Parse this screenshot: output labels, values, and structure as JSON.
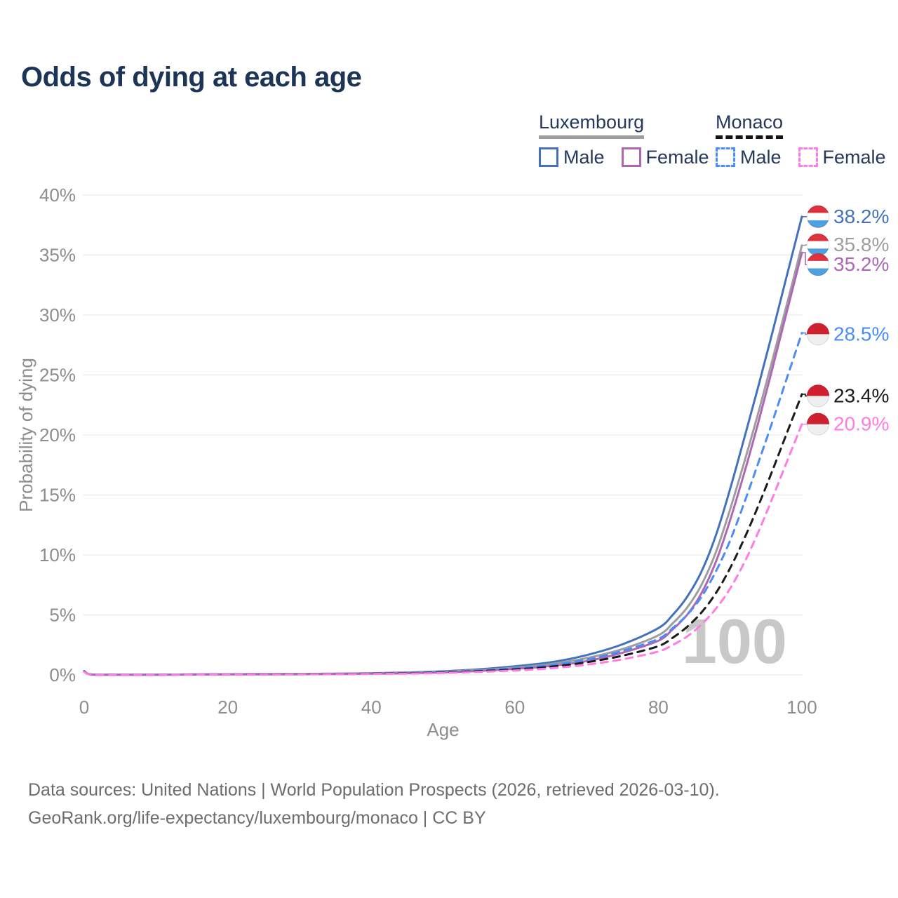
{
  "title": "Odds of dying at each age",
  "legend": {
    "luxembourg": {
      "label": "Luxembourg",
      "male": "Male",
      "female": "Female"
    },
    "monaco": {
      "label": "Monaco",
      "male": "Male",
      "female": "Female"
    }
  },
  "footer": {
    "line1": "Data sources: United Nations | World Population Prospects (2026, retrieved 2026-03-10).",
    "line2": "GeoRank.org/life-expectancy/luxembourg/monaco | CC BY"
  },
  "colors": {
    "title_navy": "#1c3557",
    "legend_text": "#24395b",
    "axis_text": "#8d8d8d",
    "gridline": "#ebebeb",
    "watermark": "#c8c8c8",
    "lux_underline": "#9e9e9e",
    "mon_underline": "#141414",
    "footer_text": "#6d6d6d"
  },
  "flags": {
    "luxembourg": [
      "#e0313f",
      "#ffffff",
      "#4fa0e0"
    ],
    "monaco": [
      "#d01f2f",
      "#efefef"
    ]
  },
  "chart_data": {
    "type": "line",
    "title": "Odds of dying at each age",
    "xlabel": "Age",
    "ylabel": "Probability of dying",
    "xlim": [
      0,
      100
    ],
    "ylim": [
      0,
      40
    ],
    "x_ticks": [
      0,
      20,
      40,
      60,
      80,
      100
    ],
    "y_ticks": [
      {
        "value": 0,
        "label": "0%"
      },
      {
        "value": 5,
        "label": "5%"
      },
      {
        "value": 10,
        "label": "10%"
      },
      {
        "value": 15,
        "label": "15%"
      },
      {
        "value": 20,
        "label": "20%"
      },
      {
        "value": 25,
        "label": "25%"
      },
      {
        "value": 30,
        "label": "30%"
      },
      {
        "value": 35,
        "label": "35%"
      },
      {
        "value": 40,
        "label": "40%"
      }
    ],
    "grid": "horizontal-only",
    "legend_position": "top-right",
    "watermark": "100",
    "series": [
      {
        "id": "lux_male",
        "name": "Luxembourg Male",
        "country": "luxembourg",
        "sex": "male",
        "color": "#4472ba",
        "dash": false,
        "end_label": "38.2%",
        "label_y_pct": 38.2,
        "points": [
          [
            0,
            0.32
          ],
          [
            1,
            0.04
          ],
          [
            5,
            0.02
          ],
          [
            10,
            0.02
          ],
          [
            15,
            0.04
          ],
          [
            20,
            0.06
          ],
          [
            25,
            0.07
          ],
          [
            30,
            0.08
          ],
          [
            35,
            0.1
          ],
          [
            40,
            0.14
          ],
          [
            45,
            0.2
          ],
          [
            50,
            0.3
          ],
          [
            55,
            0.47
          ],
          [
            60,
            0.72
          ],
          [
            65,
            1.05
          ],
          [
            70,
            1.65
          ],
          [
            75,
            2.55
          ],
          [
            80,
            3.9
          ],
          [
            82,
            5.0
          ],
          [
            84,
            6.5
          ],
          [
            86,
            8.6
          ],
          [
            88,
            11.6
          ],
          [
            90,
            15.5
          ],
          [
            92,
            19.8
          ],
          [
            94,
            24.2
          ],
          [
            96,
            28.8
          ],
          [
            98,
            33.5
          ],
          [
            100,
            38.2
          ]
        ]
      },
      {
        "id": "lux_both",
        "name": "Luxembourg Both sexes",
        "country": "luxembourg",
        "sex": "both",
        "color": "#9e9e9e",
        "dash": false,
        "end_label": "35.8%",
        "label_y_pct": 35.85,
        "points": [
          [
            0,
            0.29
          ],
          [
            1,
            0.035
          ],
          [
            5,
            0.018
          ],
          [
            10,
            0.018
          ],
          [
            15,
            0.035
          ],
          [
            20,
            0.05
          ],
          [
            25,
            0.06
          ],
          [
            30,
            0.07
          ],
          [
            35,
            0.09
          ],
          [
            40,
            0.12
          ],
          [
            45,
            0.17
          ],
          [
            50,
            0.26
          ],
          [
            55,
            0.4
          ],
          [
            60,
            0.6
          ],
          [
            65,
            0.9
          ],
          [
            70,
            1.4
          ],
          [
            75,
            2.15
          ],
          [
            80,
            3.3
          ],
          [
            82,
            4.3
          ],
          [
            84,
            5.6
          ],
          [
            86,
            7.5
          ],
          [
            88,
            10.2
          ],
          [
            90,
            13.8
          ],
          [
            92,
            17.8
          ],
          [
            94,
            22.0
          ],
          [
            96,
            26.5
          ],
          [
            98,
            31.1
          ],
          [
            100,
            35.8
          ]
        ]
      },
      {
        "id": "lux_female",
        "name": "Luxembourg Female",
        "country": "luxembourg",
        "sex": "female",
        "color": "#ad67b4",
        "dash": false,
        "end_label": "35.2%",
        "label_y_pct": 34.2,
        "points": [
          [
            0,
            0.27
          ],
          [
            1,
            0.03
          ],
          [
            5,
            0.015
          ],
          [
            10,
            0.015
          ],
          [
            15,
            0.03
          ],
          [
            20,
            0.04
          ],
          [
            25,
            0.045
          ],
          [
            30,
            0.055
          ],
          [
            35,
            0.07
          ],
          [
            40,
            0.1
          ],
          [
            45,
            0.14
          ],
          [
            50,
            0.21
          ],
          [
            55,
            0.33
          ],
          [
            60,
            0.5
          ],
          [
            65,
            0.75
          ],
          [
            70,
            1.15
          ],
          [
            75,
            1.85
          ],
          [
            80,
            2.85
          ],
          [
            82,
            3.8
          ],
          [
            84,
            5.0
          ],
          [
            86,
            6.8
          ],
          [
            88,
            9.4
          ],
          [
            90,
            12.9
          ],
          [
            92,
            16.9
          ],
          [
            94,
            21.2
          ],
          [
            96,
            25.8
          ],
          [
            98,
            30.5
          ],
          [
            100,
            35.2
          ]
        ]
      },
      {
        "id": "mon_male",
        "name": "Monaco Male",
        "country": "monaco",
        "sex": "male",
        "color": "#4b8cf7",
        "dash": true,
        "end_label": "28.5%",
        "label_y_pct": 28.4,
        "points": [
          [
            0,
            0.3
          ],
          [
            1,
            0.035
          ],
          [
            5,
            0.017
          ],
          [
            10,
            0.017
          ],
          [
            15,
            0.033
          ],
          [
            20,
            0.05
          ],
          [
            25,
            0.055
          ],
          [
            30,
            0.065
          ],
          [
            35,
            0.08
          ],
          [
            40,
            0.11
          ],
          [
            45,
            0.16
          ],
          [
            50,
            0.24
          ],
          [
            55,
            0.37
          ],
          [
            60,
            0.55
          ],
          [
            65,
            0.82
          ],
          [
            70,
            1.28
          ],
          [
            75,
            2.0
          ],
          [
            80,
            3.0
          ],
          [
            82,
            3.9
          ],
          [
            84,
            5.0
          ],
          [
            86,
            6.5
          ],
          [
            88,
            8.6
          ],
          [
            90,
            11.2
          ],
          [
            92,
            14.4
          ],
          [
            94,
            17.8
          ],
          [
            96,
            21.3
          ],
          [
            98,
            24.9
          ],
          [
            100,
            28.5
          ]
        ]
      },
      {
        "id": "mon_both",
        "name": "Monaco Both sexes",
        "country": "monaco",
        "sex": "both",
        "color": "#1a1a1a",
        "dash": true,
        "end_label": "23.4%",
        "label_y_pct": 23.25,
        "points": [
          [
            0,
            0.28
          ],
          [
            1,
            0.03
          ],
          [
            5,
            0.015
          ],
          [
            10,
            0.015
          ],
          [
            15,
            0.03
          ],
          [
            20,
            0.045
          ],
          [
            25,
            0.05
          ],
          [
            30,
            0.06
          ],
          [
            35,
            0.07
          ],
          [
            40,
            0.095
          ],
          [
            45,
            0.14
          ],
          [
            50,
            0.2
          ],
          [
            55,
            0.31
          ],
          [
            60,
            0.46
          ],
          [
            65,
            0.68
          ],
          [
            70,
            1.05
          ],
          [
            75,
            1.6
          ],
          [
            80,
            2.4
          ],
          [
            82,
            3.1
          ],
          [
            84,
            4.0
          ],
          [
            86,
            5.2
          ],
          [
            88,
            6.8
          ],
          [
            90,
            8.9
          ],
          [
            92,
            11.4
          ],
          [
            94,
            14.2
          ],
          [
            96,
            17.2
          ],
          [
            98,
            20.3
          ],
          [
            100,
            23.4
          ]
        ]
      },
      {
        "id": "mon_female",
        "name": "Monaco Female",
        "country": "monaco",
        "sex": "female",
        "color": "#ff7ce4",
        "dash": true,
        "end_label": "20.9%",
        "label_y_pct": 20.9,
        "points": [
          [
            0,
            0.25
          ],
          [
            1,
            0.028
          ],
          [
            5,
            0.013
          ],
          [
            10,
            0.013
          ],
          [
            15,
            0.025
          ],
          [
            20,
            0.035
          ],
          [
            25,
            0.04
          ],
          [
            30,
            0.05
          ],
          [
            35,
            0.06
          ],
          [
            40,
            0.08
          ],
          [
            45,
            0.11
          ],
          [
            50,
            0.16
          ],
          [
            55,
            0.25
          ],
          [
            60,
            0.37
          ],
          [
            65,
            0.55
          ],
          [
            70,
            0.85
          ],
          [
            75,
            1.3
          ],
          [
            80,
            1.95
          ],
          [
            82,
            2.5
          ],
          [
            84,
            3.2
          ],
          [
            86,
            4.2
          ],
          [
            88,
            5.5
          ],
          [
            90,
            7.2
          ],
          [
            92,
            9.4
          ],
          [
            94,
            12.0
          ],
          [
            96,
            14.9
          ],
          [
            98,
            17.9
          ],
          [
            100,
            20.9
          ]
        ]
      }
    ]
  }
}
